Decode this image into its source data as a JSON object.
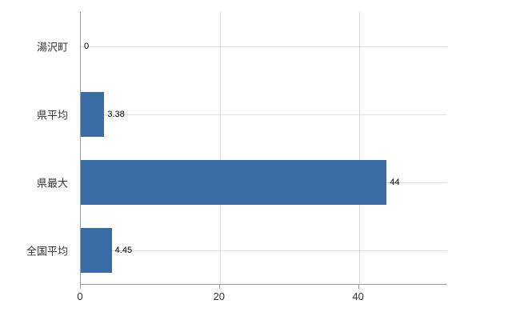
{
  "chart_data": {
    "type": "bar",
    "orientation": "horizontal",
    "title": "",
    "categories": [
      "湯沢町",
      "県平均",
      "県最大",
      "全国平均"
    ],
    "values": [
      0,
      3.38,
      44,
      4.45
    ],
    "value_labels": [
      "0",
      "3.38",
      "44",
      "4.45"
    ],
    "xticks": [
      0,
      20,
      40
    ],
    "xtick_labels": [
      "0",
      "20",
      "40"
    ],
    "xlim": [
      0,
      52.7
    ],
    "grid": true,
    "legend": false,
    "colors": {
      "bar": "#3b6ba4",
      "gridline": "#d9d9d9",
      "axis": "#9a9a9a",
      "label_text": "#333333",
      "value_text": "#000000",
      "background": "#ffffff"
    }
  }
}
